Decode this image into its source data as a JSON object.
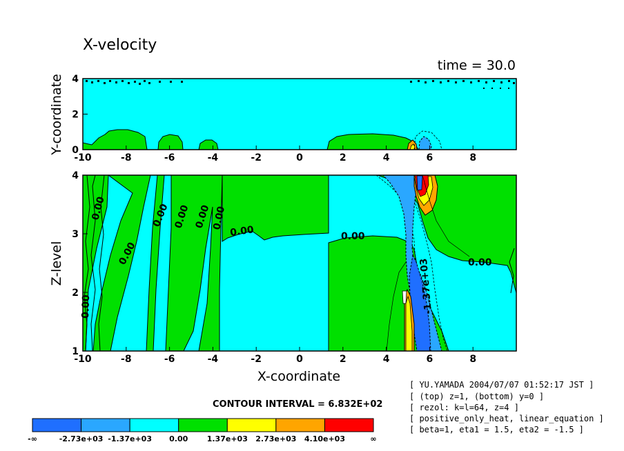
{
  "chart_data": [
    {
      "type": "contour",
      "panel": "top",
      "title": "X-velocity",
      "time_label": "time = 30.0",
      "xlabel": "",
      "ylabel": "Y-coordinate",
      "xlim": [
        -10,
        10
      ],
      "ylim": [
        0,
        4
      ],
      "xticks": [
        "-10",
        "-8",
        "-6",
        "-4",
        "-2",
        "0",
        "2",
        "4",
        "6",
        "8"
      ],
      "yticks": [
        "0",
        "2",
        "4"
      ],
      "background_level": "-1.37e+03 to 0.00",
      "regions": [
        {
          "level": "0.00 to 1.37e+03",
          "x": [
            -10.0,
            -8.0
          ],
          "y": [
            0.0,
            1.0
          ]
        },
        {
          "level": "0.00 to 1.37e+03",
          "x": [
            -8.0,
            -7.0
          ],
          "y": [
            0.0,
            1.0
          ]
        },
        {
          "level": "0.00 to 1.37e+03",
          "x": [
            -6.4,
            -5.3
          ],
          "y": [
            0.0,
            0.8
          ]
        },
        {
          "level": "0.00 to 1.37e+03",
          "x": [
            -4.6,
            -3.6
          ],
          "y": [
            0.0,
            0.6
          ]
        },
        {
          "level": "0.00 to 1.37e+03",
          "x": [
            1.3,
            5.0
          ],
          "y": [
            0.0,
            0.9
          ]
        },
        {
          "level": "-2.73e+03 to -1.37e+03",
          "x": [
            5.6,
            6.2
          ],
          "y": [
            0.0,
            0.5
          ]
        },
        {
          "level": "1.37e+03 to 2.73e+03",
          "x": [
            5.1,
            5.4
          ],
          "y": [
            0.0,
            0.4
          ]
        }
      ]
    },
    {
      "type": "contour",
      "panel": "bottom",
      "xlabel": "X-coordinate",
      "ylabel": "Z-level",
      "xlim": [
        -10,
        10
      ],
      "ylim": [
        1,
        4
      ],
      "xticks": [
        "-10",
        "-8",
        "-6",
        "-4",
        "-2",
        "0",
        "2",
        "4",
        "6",
        "8"
      ],
      "yticks": [
        "1",
        "2",
        "3",
        "4"
      ],
      "background_level": "-1.37e+03 to 0.00",
      "contour_labels": [
        "0.00",
        "0.00",
        "0.00",
        "0.00",
        "0.00",
        "0.00",
        "0.00",
        "0.00",
        "0.00",
        "0.00",
        "-1.37e+03"
      ],
      "regions": [
        {
          "level": "0.00 to 1.37e+03",
          "description": "left band",
          "x": [
            -10.0,
            -7.2
          ],
          "z": [
            1.0,
            4.0
          ]
        },
        {
          "level": "0.00 to 1.37e+03",
          "description": "left-centre strips",
          "x": [
            -6.8,
            -3.7
          ],
          "z": [
            1.0,
            4.0
          ]
        },
        {
          "level": "0.00 to 1.37e+03",
          "description": "upper middle plateau",
          "x": [
            -3.7,
            1.2
          ],
          "z": [
            3.0,
            4.0
          ]
        },
        {
          "level": "0.00 to 1.37e+03",
          "description": "right region",
          "x": [
            1.3,
            10.0
          ],
          "z": [
            1.0,
            4.0
          ]
        },
        {
          "level": "-2.73e+03 to -1.37e+03",
          "description": "tilted negative jet",
          "x": [
            4.2,
            6.5
          ],
          "z": [
            1.0,
            4.0
          ]
        },
        {
          "level": "-inf to -2.73e+03",
          "description": "jet core",
          "x": [
            5.2,
            5.9
          ],
          "z": [
            1.0,
            2.6
          ]
        },
        {
          "level": "4.10e+03 to inf",
          "description": "upper positive maximum",
          "x": [
            5.3,
            5.9
          ],
          "z": [
            3.6,
            4.0
          ]
        },
        {
          "level": "2.73e+03 to 4.10e+03",
          "description": "lower positive maximum",
          "x": [
            4.8,
            5.3
          ],
          "z": [
            1.0,
            2.8
          ]
        }
      ]
    }
  ],
  "contour_interval": "CONTOUR INTERVAL = 6.832E+02",
  "colorbar": {
    "colors": [
      "#1f6fff",
      "#2aa7ff",
      "#00ffff",
      "#00e000",
      "#ffff00",
      "#ffa500",
      "#ff0000"
    ],
    "labels": [
      "-∞",
      "-2.73e+03",
      "-1.37e+03",
      "0.00",
      "1.37e+03",
      "2.73e+03",
      "4.10e+03",
      "∞"
    ]
  },
  "info": [
    "[ YU.YAMADA 2004/07/07 01:52:17 JST ]",
    "[ (top) z=1, (bottom) y=0 ]",
    "[ rezol: k=l=64, z=4 ]",
    "[ positive_only_heat, linear_equation ]",
    "[ beta=1, eta1 = 1.5, eta2 = -1.5 ]"
  ],
  "colors": {
    "green": "#00e000",
    "cyan": "#00ffff",
    "blue": "#2aa7ff",
    "darkblue": "#1f6fff",
    "yellow": "#ffff00",
    "orange": "#ffa500",
    "red": "#ff0000"
  }
}
